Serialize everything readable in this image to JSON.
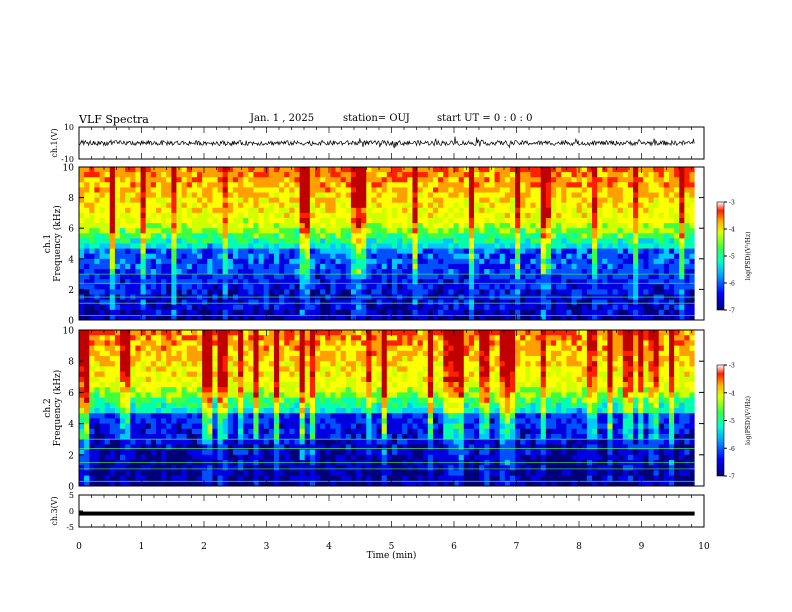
{
  "header": {
    "title": "VLF Spectra",
    "date": "Jan. 1 , 2025",
    "station": "station= OUJ",
    "start": "start UT =  0 : 0 : 0"
  },
  "chart_data": [
    {
      "type": "line",
      "panel": "ch1-waveform",
      "ylabel": "ch.1(V)",
      "ylim": [
        -10,
        10
      ],
      "yticks": [
        "10",
        "-10"
      ],
      "x_range": [
        0,
        9.85
      ],
      "baseline": 0,
      "description_color": "#000000"
    },
    {
      "type": "heatmap",
      "panel": "ch1-spectrogram",
      "ylabel_line1": "ch.1",
      "ylabel_line2": "Frequency (kHz)",
      "ylim": [
        0,
        10
      ],
      "yticks": [
        "0",
        "2",
        "4",
        "6",
        "8",
        "10"
      ],
      "colorbar": {
        "label": "log(PSD)(V²/Hz)",
        "range": [
          -7,
          -3
        ],
        "ticks": [
          "-3",
          "-4",
          "-5",
          "-6",
          "-7"
        ]
      }
    },
    {
      "type": "heatmap",
      "panel": "ch2-spectrogram",
      "ylabel_line1": "ch.2",
      "ylabel_line2": "Frequency (kHz)",
      "ylim": [
        0,
        10
      ],
      "yticks": [
        "0",
        "2",
        "4",
        "6",
        "8",
        "10"
      ],
      "colorbar": {
        "label": "log(PSD)(V²/Hz)",
        "range": [
          -7,
          -3
        ],
        "ticks": [
          "-3",
          "-4",
          "-5",
          "-6",
          "-7"
        ]
      }
    },
    {
      "type": "line",
      "panel": "ch3-waveform",
      "ylabel": "ch.3(V)",
      "ylim": [
        -5,
        5
      ],
      "yticks": [
        "5",
        "0",
        "-5"
      ],
      "x_range": [
        0,
        9.85
      ],
      "baseline": -0.8
    }
  ],
  "xaxis": {
    "label": "Time (min)",
    "range": [
      0,
      10
    ],
    "ticks": [
      "0",
      "1",
      "2",
      "3",
      "4",
      "5",
      "6",
      "7",
      "8",
      "9",
      "10"
    ]
  },
  "colors": {
    "colormap": [
      "#00007a",
      "#0000e0",
      "#0050ff",
      "#00c8ff",
      "#00ffb0",
      "#40ff40",
      "#d0ff00",
      "#ffff00",
      "#ffa000",
      "#ff2000",
      "#c00000"
    ]
  }
}
